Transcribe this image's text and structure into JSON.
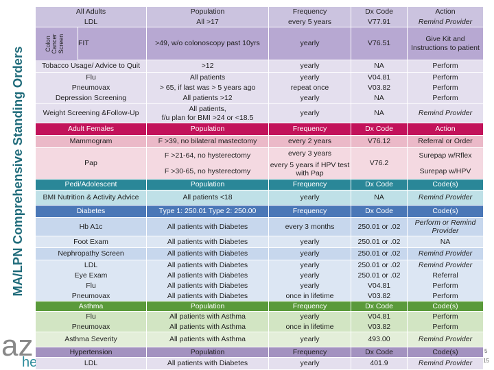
{
  "title": "MA/LPN Comprehensive Standing Orders",
  "logo": [
    "az",
    "he"
  ],
  "page_marks": [
    "5",
    "15"
  ],
  "table": {
    "side_label": "Colon Cancer Screen",
    "rows": [
      [
        [
          "All Adults",
          "LDL"
        ],
        [
          "Population",
          "All >17"
        ],
        [
          "Frequency",
          "every 5 years"
        ],
        [
          "Dx Code",
          "V77.91"
        ],
        [
          "Action",
          "Remind Provider"
        ]
      ],
      [
        "FIT",
        ">49, w/o colonoscopy past 10yrs",
        "yearly",
        "V76.51",
        "Give Kit and Instructions to patient"
      ],
      [
        "Tobacco Usage/ Advice to Quit",
        ">12",
        "yearly",
        "NA",
        "Perform"
      ],
      [
        [
          "Flu",
          "Pneumovax",
          "Depression Screening"
        ],
        [
          "All patients",
          "> 65, if last was > 5 years ago",
          "All patients >12"
        ],
        [
          "yearly",
          "repeat once",
          "yearly"
        ],
        [
          "V04.81",
          "V03.82",
          "NA"
        ],
        [
          "Perform",
          "Perform",
          "Perform"
        ]
      ],
      [
        "Weight Screening &Follow-Up",
        [
          "All patients,",
          "f/u plan for BMI >24  or <18.5"
        ],
        "yearly",
        "NA",
        "Remind Provider"
      ],
      [
        "Adult Females",
        "Population",
        "Frequency",
        "Dx Code",
        "Action"
      ],
      [
        "Mammogram",
        "F >39, no bilateral mastectomy",
        "every 2 years",
        "V76.12",
        "Referral or Order"
      ],
      [
        "Pap",
        [
          "F >21-64, no hysterectomy",
          "F >30-65, no hysterectomy"
        ],
        [
          "every 3 years",
          "every 5 years if HPV test with Pap"
        ],
        "V76.2",
        [
          "Surepap w/Rflex",
          "Surepap w/HPV"
        ]
      ],
      [
        "Pedi/Adolescent",
        "Population",
        "Frequency",
        "Dx Code",
        "Code(s)"
      ],
      [
        "BMI Nutrition & Activity Advice",
        "All patients <18",
        "yearly",
        "NA",
        "Remind Provider"
      ],
      [
        "Diabetes",
        "Type 1: 250.01 Type 2: 250.00",
        "Frequency",
        "Dx Code",
        "Code(s)"
      ],
      [
        "Hb A1c",
        "All patients with Diabetes",
        "every 3 months",
        "250.01 or .02",
        "Perform or Remind Provider"
      ],
      [
        "Foot Exam",
        "All patients with Diabetes",
        "yearly",
        "250.01 or .02",
        "NA"
      ],
      [
        "Nephropathy Screen",
        "All patients with Diabetes",
        "yearly",
        "250.01 or .02",
        "Remind Provider"
      ],
      [
        [
          "LDL",
          "Eye Exam",
          "Flu",
          "Pneumovax"
        ],
        [
          "All patients with Diabetes",
          "All patients with Diabetes",
          "All patients with Diabetes",
          "All patients with Diabetes"
        ],
        [
          "yearly",
          "yearly",
          "yearly",
          "once in lifetime"
        ],
        [
          "250.01 or .02",
          "250.01 or .02",
          "V04.81",
          "V03.82"
        ],
        [
          "Remind Provider",
          "Referral",
          "Perform",
          "Perform"
        ]
      ],
      [
        "Asthma",
        "Population",
        "Frequency",
        "Dx Code",
        "Code(s)"
      ],
      [
        [
          "Flu",
          "Pneumovax"
        ],
        [
          "All patients with Asthma",
          "All patients with Asthma"
        ],
        [
          "yearly",
          "once in lifetime"
        ],
        [
          "V04.81",
          "V03.82"
        ],
        [
          "Perform",
          "Perform"
        ]
      ],
      [
        "Asthma Severity",
        "All patients with Asthma",
        "yearly",
        "493.00",
        "Remind Provider"
      ],
      [
        "Hypertension",
        "Population",
        "Frequency",
        "Dx Code",
        "Code(s)"
      ],
      [
        "LDL",
        "All patients with Diabetes",
        "yearly",
        "401.9",
        "Remind Provider"
      ]
    ]
  }
}
